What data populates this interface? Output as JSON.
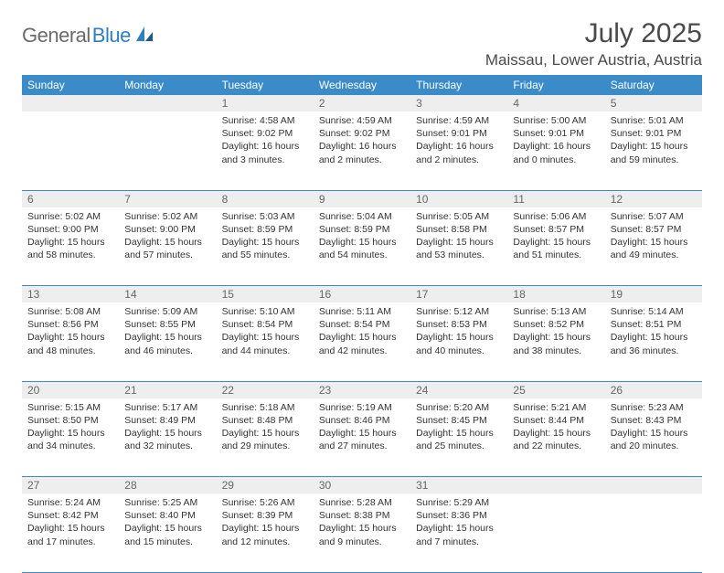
{
  "logo": {
    "text1": "General",
    "text2": "Blue"
  },
  "title": "July 2025",
  "location": "Maissau, Lower Austria, Austria",
  "colors": {
    "header_bg": "#3b8bc9",
    "header_text": "#ffffff",
    "daynum_bg": "#eeeeee",
    "logo_gray": "#6b6b6b",
    "logo_blue": "#2f7ec0",
    "rule": "#3b8bc9"
  },
  "weekdays": [
    "Sunday",
    "Monday",
    "Tuesday",
    "Wednesday",
    "Thursday",
    "Friday",
    "Saturday"
  ],
  "weeks": [
    [
      null,
      null,
      {
        "n": "1",
        "sr": "4:58 AM",
        "ss": "9:02 PM",
        "dl": "16 hours and 3 minutes."
      },
      {
        "n": "2",
        "sr": "4:59 AM",
        "ss": "9:02 PM",
        "dl": "16 hours and 2 minutes."
      },
      {
        "n": "3",
        "sr": "4:59 AM",
        "ss": "9:01 PM",
        "dl": "16 hours and 2 minutes."
      },
      {
        "n": "4",
        "sr": "5:00 AM",
        "ss": "9:01 PM",
        "dl": "16 hours and 0 minutes."
      },
      {
        "n": "5",
        "sr": "5:01 AM",
        "ss": "9:01 PM",
        "dl": "15 hours and 59 minutes."
      }
    ],
    [
      {
        "n": "6",
        "sr": "5:02 AM",
        "ss": "9:00 PM",
        "dl": "15 hours and 58 minutes."
      },
      {
        "n": "7",
        "sr": "5:02 AM",
        "ss": "9:00 PM",
        "dl": "15 hours and 57 minutes."
      },
      {
        "n": "8",
        "sr": "5:03 AM",
        "ss": "8:59 PM",
        "dl": "15 hours and 55 minutes."
      },
      {
        "n": "9",
        "sr": "5:04 AM",
        "ss": "8:59 PM",
        "dl": "15 hours and 54 minutes."
      },
      {
        "n": "10",
        "sr": "5:05 AM",
        "ss": "8:58 PM",
        "dl": "15 hours and 53 minutes."
      },
      {
        "n": "11",
        "sr": "5:06 AM",
        "ss": "8:57 PM",
        "dl": "15 hours and 51 minutes."
      },
      {
        "n": "12",
        "sr": "5:07 AM",
        "ss": "8:57 PM",
        "dl": "15 hours and 49 minutes."
      }
    ],
    [
      {
        "n": "13",
        "sr": "5:08 AM",
        "ss": "8:56 PM",
        "dl": "15 hours and 48 minutes."
      },
      {
        "n": "14",
        "sr": "5:09 AM",
        "ss": "8:55 PM",
        "dl": "15 hours and 46 minutes."
      },
      {
        "n": "15",
        "sr": "5:10 AM",
        "ss": "8:54 PM",
        "dl": "15 hours and 44 minutes."
      },
      {
        "n": "16",
        "sr": "5:11 AM",
        "ss": "8:54 PM",
        "dl": "15 hours and 42 minutes."
      },
      {
        "n": "17",
        "sr": "5:12 AM",
        "ss": "8:53 PM",
        "dl": "15 hours and 40 minutes."
      },
      {
        "n": "18",
        "sr": "5:13 AM",
        "ss": "8:52 PM",
        "dl": "15 hours and 38 minutes."
      },
      {
        "n": "19",
        "sr": "5:14 AM",
        "ss": "8:51 PM",
        "dl": "15 hours and 36 minutes."
      }
    ],
    [
      {
        "n": "20",
        "sr": "5:15 AM",
        "ss": "8:50 PM",
        "dl": "15 hours and 34 minutes."
      },
      {
        "n": "21",
        "sr": "5:17 AM",
        "ss": "8:49 PM",
        "dl": "15 hours and 32 minutes."
      },
      {
        "n": "22",
        "sr": "5:18 AM",
        "ss": "8:48 PM",
        "dl": "15 hours and 29 minutes."
      },
      {
        "n": "23",
        "sr": "5:19 AM",
        "ss": "8:46 PM",
        "dl": "15 hours and 27 minutes."
      },
      {
        "n": "24",
        "sr": "5:20 AM",
        "ss": "8:45 PM",
        "dl": "15 hours and 25 minutes."
      },
      {
        "n": "25",
        "sr": "5:21 AM",
        "ss": "8:44 PM",
        "dl": "15 hours and 22 minutes."
      },
      {
        "n": "26",
        "sr": "5:23 AM",
        "ss": "8:43 PM",
        "dl": "15 hours and 20 minutes."
      }
    ],
    [
      {
        "n": "27",
        "sr": "5:24 AM",
        "ss": "8:42 PM",
        "dl": "15 hours and 17 minutes."
      },
      {
        "n": "28",
        "sr": "5:25 AM",
        "ss": "8:40 PM",
        "dl": "15 hours and 15 minutes."
      },
      {
        "n": "29",
        "sr": "5:26 AM",
        "ss": "8:39 PM",
        "dl": "15 hours and 12 minutes."
      },
      {
        "n": "30",
        "sr": "5:28 AM",
        "ss": "8:38 PM",
        "dl": "15 hours and 9 minutes."
      },
      {
        "n": "31",
        "sr": "5:29 AM",
        "ss": "8:36 PM",
        "dl": "15 hours and 7 minutes."
      },
      null,
      null
    ]
  ],
  "labels": {
    "sunrise": "Sunrise:",
    "sunset": "Sunset:",
    "daylight": "Daylight:"
  }
}
